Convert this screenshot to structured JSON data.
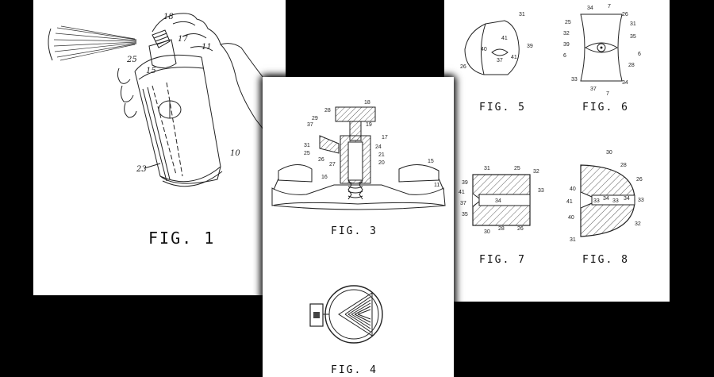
{
  "sheets": {
    "fig1": {
      "label": "FIG. 1",
      "refs": {
        "r18": "18",
        "r17": "17",
        "r11": "11",
        "r25": "25",
        "r15": "15",
        "r10": "10",
        "r23": "23"
      }
    },
    "fig3": {
      "label": "FIG. 3",
      "refs": {
        "r18": "18",
        "r28": "28",
        "r29": "29",
        "r37": "37",
        "r19": "19",
        "r17": "17",
        "r31": "31",
        "r25": "25",
        "r24": "24",
        "r26": "26",
        "r27": "27",
        "r21": "21",
        "r20": "20",
        "r15": "15",
        "r16": "16",
        "r11": "11"
      }
    },
    "fig4": {
      "label": "FIG. 4"
    },
    "fig5": {
      "label": "FIG. 5",
      "refs": {
        "r31": "31",
        "r41": "41",
        "r39": "39",
        "r40": "40",
        "r37": "37",
        "r41b": "41",
        "r26": "26"
      }
    },
    "fig6": {
      "label": "FIG. 6",
      "refs": {
        "r34": "34",
        "r7": "7",
        "r26": "26",
        "r25": "25",
        "r31": "31",
        "r32": "32",
        "r35": "35",
        "r39": "39",
        "r6": "6",
        "r6b": "6",
        "r28": "28",
        "r33": "33",
        "r34b": "34",
        "r37": "37",
        "r7b": "7"
      }
    },
    "fig7": {
      "label": "FIG. 7",
      "refs": {
        "r31": "31",
        "r25": "25",
        "r32": "32",
        "r39": "39",
        "r33": "33",
        "r41": "41",
        "r34": "34",
        "r37": "37",
        "r35": "35",
        "r30": "30",
        "r28": "28",
        "r26": "26"
      }
    },
    "fig8": {
      "label": "FIG. 8",
      "refs": {
        "r30": "30",
        "r28": "28",
        "r26": "26",
        "r40": "40",
        "r41": "41",
        "r33": "33",
        "r34": "34",
        "r33b": "33",
        "r34b": "34",
        "r33c": "33",
        "r40b": "40",
        "r32": "32",
        "r31": "31"
      }
    }
  }
}
